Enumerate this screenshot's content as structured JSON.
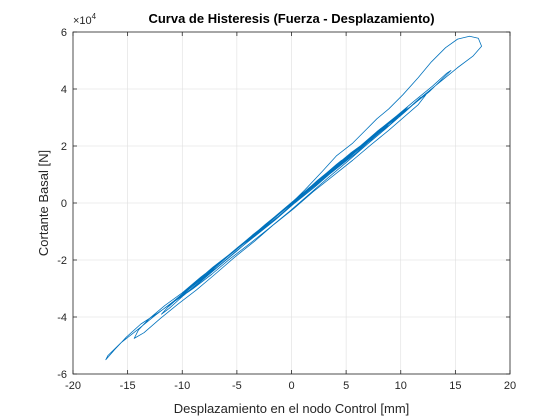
{
  "chart_data": {
    "type": "line",
    "title": "Curva de Histeresis (Fuerza - Desplazamiento)",
    "xlabel": "Desplazamiento en el nodo Control [mm]",
    "ylabel": "Cortante Basal [N]",
    "xlim": [
      -20,
      20
    ],
    "ylim": [
      -60000,
      60000
    ],
    "x_ticks": [
      -20,
      -15,
      -10,
      -5,
      0,
      5,
      10,
      15,
      20
    ],
    "x_tick_labels": [
      "-20",
      "-15",
      "-10",
      "-5",
      "0",
      "5",
      "10",
      "15",
      "20"
    ],
    "y_ticks": [
      -60000,
      -40000,
      -20000,
      0,
      20000,
      40000,
      60000
    ],
    "y_tick_labels": [
      "-6",
      "-4",
      "-2",
      "0",
      "2",
      "4",
      "6"
    ],
    "y_exponent": "×10",
    "y_exponent_power": "4",
    "grid": true,
    "line_color": "#0072BD",
    "series": [
      {
        "x": [
          0,
          1.2,
          2.8,
          4.1,
          5.6,
          6.9,
          7.8,
          8.9,
          10.2,
          11.6,
          12.8,
          14.1,
          15.2,
          16.3,
          17.1,
          17.4,
          16.6,
          15.2,
          13.6,
          12.0,
          10.4,
          8.6,
          6.9,
          5.1,
          3.4,
          1.6,
          -0.2,
          -2.1,
          -3.9,
          -5.6,
          -7.3,
          -9.0,
          -10.7,
          -12.2,
          -13.8,
          -15.1,
          -16.2,
          -17.0,
          -16.8,
          -15.6,
          -14.1,
          -12.5,
          -10.8,
          -9.1,
          -7.4,
          -5.6,
          -3.8,
          -2.0,
          -0.3,
          1.5,
          3.3,
          5.0,
          6.8,
          8.4,
          9.9,
          11.3,
          12.6,
          13.8,
          14.6,
          14.2,
          12.9,
          11.3,
          9.6,
          7.8,
          6.0,
          4.2,
          2.4,
          0.6,
          -1.2,
          -3.0,
          -4.8,
          -6.6,
          -8.3,
          -10.0,
          -11.6,
          -13.0,
          -14.0,
          -14.4,
          -13.5,
          -12.0,
          -10.4,
          -8.7,
          -7.0,
          -5.2,
          -3.4,
          -1.6,
          0.2,
          2.0,
          3.8,
          5.6,
          7.3,
          8.9,
          10.4,
          11.6,
          12.3,
          11.8,
          10.5,
          9.0,
          7.3,
          5.6,
          3.9,
          2.1,
          0.3,
          -1.5,
          -3.3,
          -5.1,
          -6.8,
          -8.5,
          -10.1,
          -11.3,
          -11.9,
          -11.2,
          -9.9,
          -8.3,
          -6.6,
          -4.9,
          -3.1,
          -1.3,
          0.5,
          2.3,
          4.1,
          5.9,
          7.5,
          9.0,
          10.1,
          10.6,
          9.8,
          8.4,
          6.8,
          5.1,
          3.4,
          1.6,
          -0.2,
          -2.0,
          -3.8,
          -5.5,
          -7.2,
          -8.7,
          -9.8,
          -10.2,
          -9.3,
          -7.9,
          -6.3,
          -4.6,
          -2.9,
          -1.1,
          0.7,
          2.4,
          4.2,
          5.9,
          7.4,
          8.6,
          9.1,
          8.3,
          6.9,
          5.3,
          3.6,
          1.9,
          0.1,
          -1.7,
          -3.4,
          -5.1,
          -6.7,
          -8.0,
          -8.6,
          -7.8,
          -6.4,
          -4.8,
          -3.1,
          -1.4,
          0.4,
          2.1,
          3.8,
          5.4,
          6.8,
          7.6,
          7.0,
          5.7,
          4.1,
          2.4,
          0.7,
          -1.0,
          -2.7,
          -4.3,
          -5.8,
          -6.9,
          -7.2,
          -6.3,
          -4.9,
          -3.3,
          -1.6,
          0.1,
          1.8,
          3.4,
          4.9,
          6.0,
          6.3,
          5.4,
          4.0,
          2.4,
          0.8,
          -0.8,
          -2.4,
          -3.9,
          -5.1,
          -5.6,
          -4.8,
          -3.5,
          -2.0,
          -0.4,
          1.1,
          2.6,
          3.9,
          4.6,
          4.1,
          2.9,
          1.5,
          0.0,
          -1.5,
          -2.9,
          -3.9,
          -4.1,
          -3.1,
          -1.8,
          -0.4,
          1.0,
          2.3,
          3.1,
          2.8,
          1.7,
          0.4,
          -0.9,
          -2.0,
          -2.5,
          -1.7,
          -0.6,
          0.5,
          1.4,
          1.6,
          0.8,
          -0.2,
          -0.9,
          -0.6,
          0.1
        ],
        "y": [
          0,
          4500,
          11000,
          16500,
          21000,
          26000,
          29500,
          33000,
          38000,
          44000,
          49500,
          54500,
          57500,
          58500,
          57800,
          55000,
          51500,
          47500,
          42500,
          37500,
          32000,
          26000,
          20500,
          14500,
          9000,
          3000,
          -3000,
          -9000,
          -14500,
          -19500,
          -25000,
          -30000,
          -34500,
          -38500,
          -42500,
          -47000,
          -51500,
          -55000,
          -53500,
          -49000,
          -44500,
          -39500,
          -34500,
          -29000,
          -24000,
          -18000,
          -12500,
          -6500,
          -1000,
          5000,
          10500,
          16000,
          21500,
          26500,
          31000,
          35000,
          39000,
          43500,
          46500,
          45500,
          41000,
          36000,
          30500,
          25000,
          19000,
          13000,
          7500,
          1500,
          -4000,
          -10000,
          -15500,
          -21000,
          -26000,
          -31500,
          -36000,
          -40500,
          -44500,
          -47500,
          -45500,
          -40500,
          -35500,
          -30500,
          -25000,
          -19000,
          -13500,
          -7500,
          -2000,
          4000,
          9500,
          15000,
          20500,
          25500,
          30500,
          34500,
          38000,
          37000,
          32500,
          28000,
          22500,
          17000,
          11500,
          5500,
          0,
          -6000,
          -11500,
          -17000,
          -22500,
          -27500,
          -32500,
          -36500,
          -39000,
          -37000,
          -32500,
          -27500,
          -22000,
          -16500,
          -10500,
          -5000,
          1000,
          6500,
          12000,
          17500,
          23000,
          27500,
          31500,
          33500,
          31000,
          26500,
          21500,
          16000,
          10500,
          5000,
          -1000,
          -6500,
          -12000,
          -17500,
          -22500,
          -27500,
          -31000,
          -33000,
          -30500,
          -26000,
          -21000,
          -15500,
          -10000,
          -4500,
          1500,
          7000,
          12500,
          18000,
          22500,
          26500,
          28500,
          26000,
          21500,
          16500,
          11000,
          5500,
          0,
          -5500,
          -11000,
          -16500,
          -21500,
          -25500,
          -27500,
          -25000,
          -20500,
          -15500,
          -10000,
          -4500,
          1000,
          6500,
          12000,
          17000,
          21500,
          24000,
          22000,
          17500,
          12500,
          7500,
          2000,
          -3500,
          -9000,
          -14000,
          -18500,
          -22000,
          -23000,
          -20000,
          -15500,
          -10500,
          -5000,
          500,
          5500,
          11000,
          15500,
          19000,
          20000,
          17500,
          13000,
          8000,
          2500,
          -2500,
          -7500,
          -12500,
          -16500,
          -18000,
          -15500,
          -11000,
          -6500,
          -1500,
          3500,
          8500,
          12500,
          15000,
          13500,
          9500,
          5000,
          0,
          -5000,
          -9500,
          -12500,
          -13500,
          -10000,
          -6000,
          -1500,
          3000,
          7500,
          10000,
          9000,
          5500,
          1500,
          -3000,
          -6500,
          -8000,
          -5500,
          -2000,
          1500,
          4500,
          5000,
          2500,
          -500,
          -3000,
          -2000,
          500
        ]
      }
    ]
  }
}
